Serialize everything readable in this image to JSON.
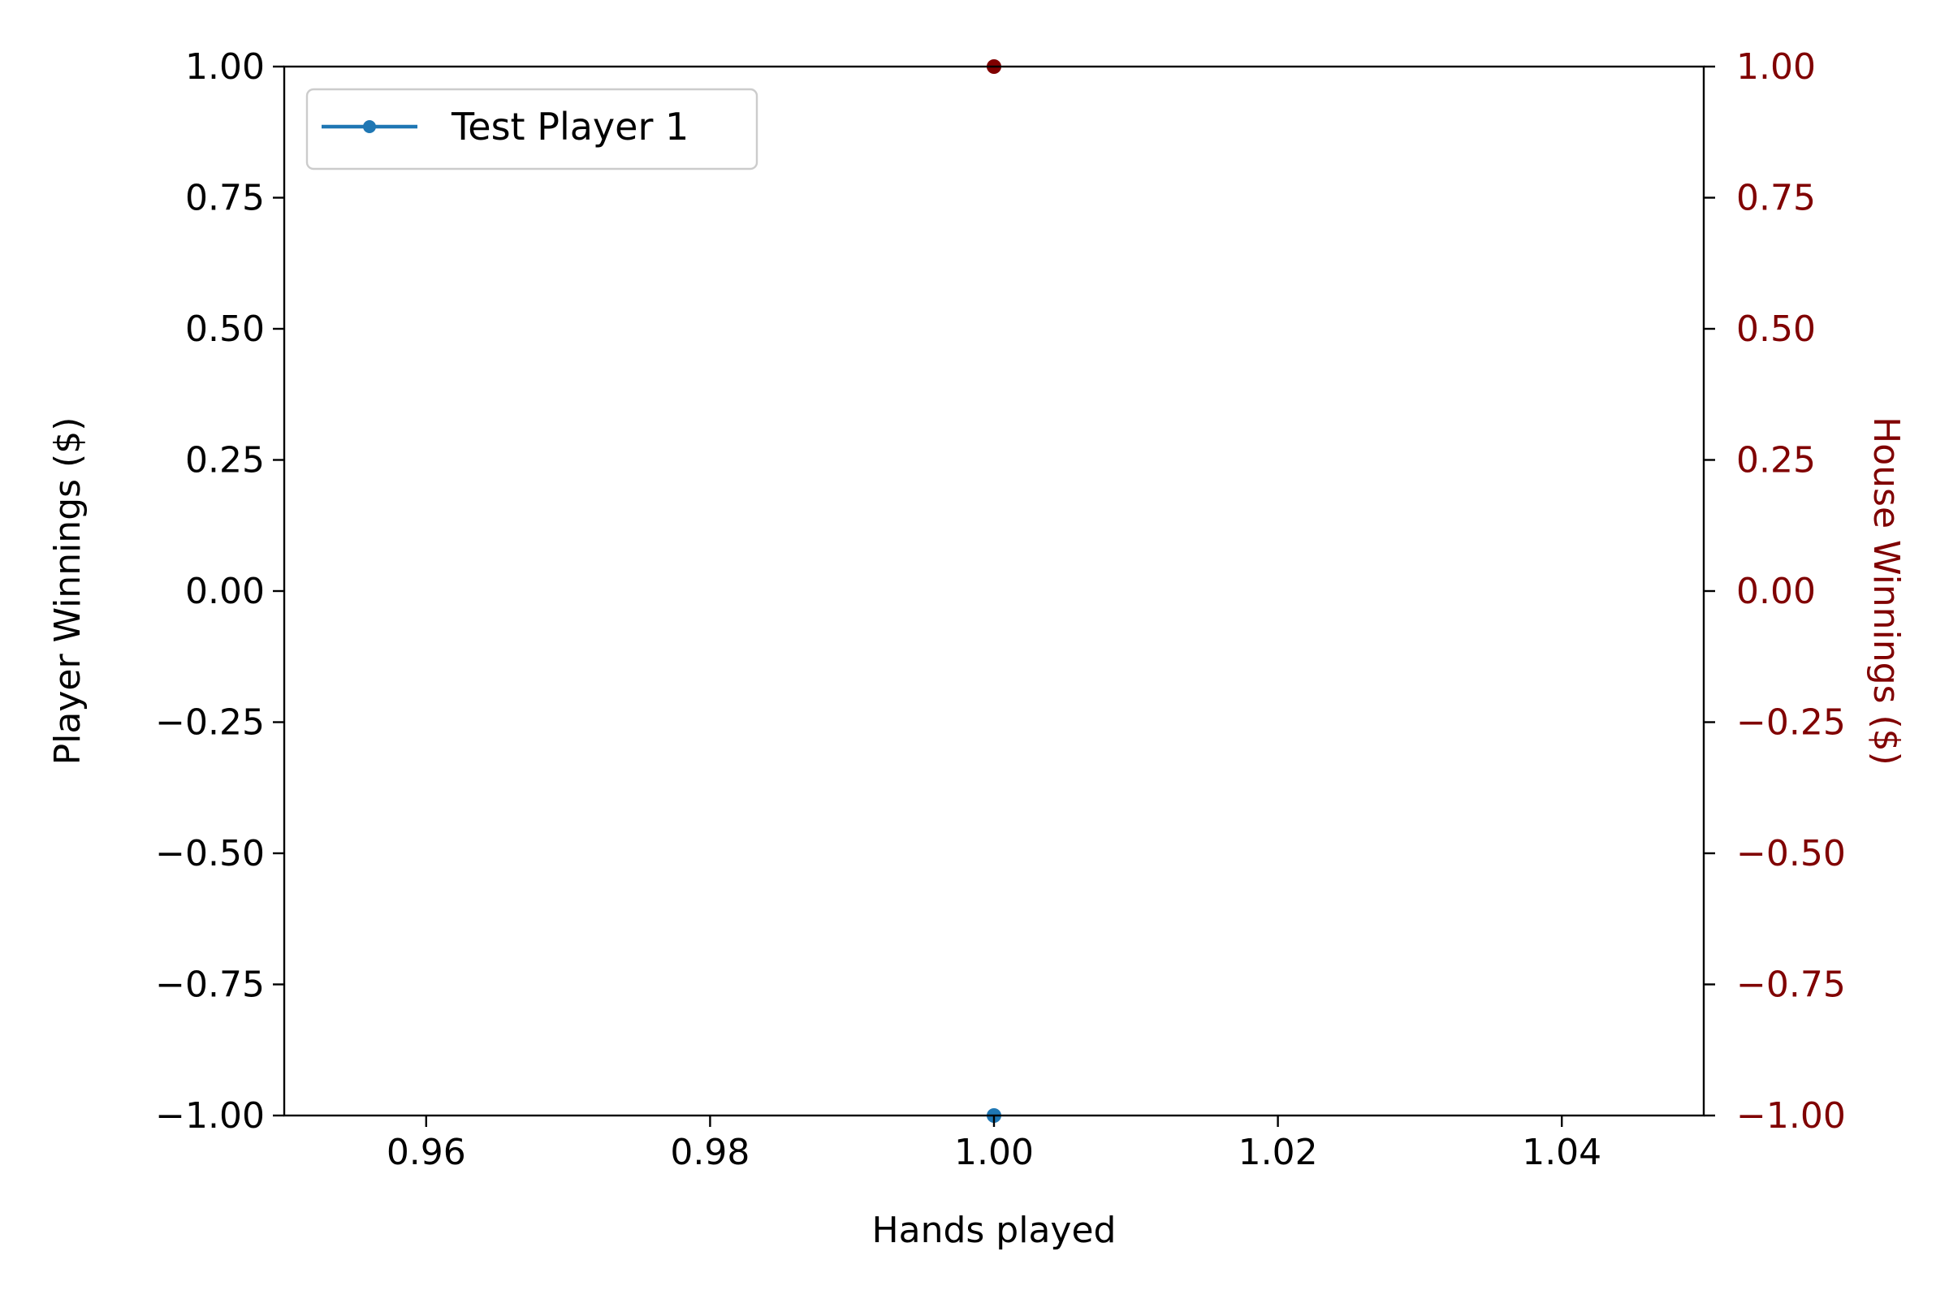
{
  "chart_data": {
    "type": "line",
    "xlabel": "Hands played",
    "ylabel": "Player Winnings ($)",
    "y2label": "House Winnings ($)",
    "xlim": [
      0.95,
      1.05
    ],
    "ylim": [
      -1.0,
      1.0
    ],
    "y2lim": [
      -1.0,
      1.0
    ],
    "xticks": [
      "0.96",
      "0.98",
      "1.00",
      "1.02",
      "1.04"
    ],
    "xtick_values": [
      0.96,
      0.98,
      1.0,
      1.02,
      1.04
    ],
    "yticks": [
      "1.00",
      "0.75",
      "0.50",
      "0.25",
      "0.00",
      "−0.25",
      "−0.50",
      "−0.75",
      "−1.00"
    ],
    "ytick_values": [
      1.0,
      0.75,
      0.5,
      0.25,
      0.0,
      -0.25,
      -0.5,
      -0.75,
      -1.0
    ],
    "y2ticks": [
      "1.00",
      "0.75",
      "0.50",
      "0.25",
      "0.00",
      "−0.25",
      "−0.50",
      "−0.75",
      "−1.00"
    ],
    "grid": false,
    "legend_position": "top-left",
    "series": [
      {
        "name": "Test Player 1",
        "axis": "left",
        "color": "#1f77b4",
        "x": [
          1.0
        ],
        "y": [
          -1.0
        ],
        "marker": "circle"
      },
      {
        "axis": "right",
        "color": "#800000",
        "x": [
          1.0
        ],
        "y": [
          1.0
        ],
        "marker": "circle"
      }
    ]
  }
}
